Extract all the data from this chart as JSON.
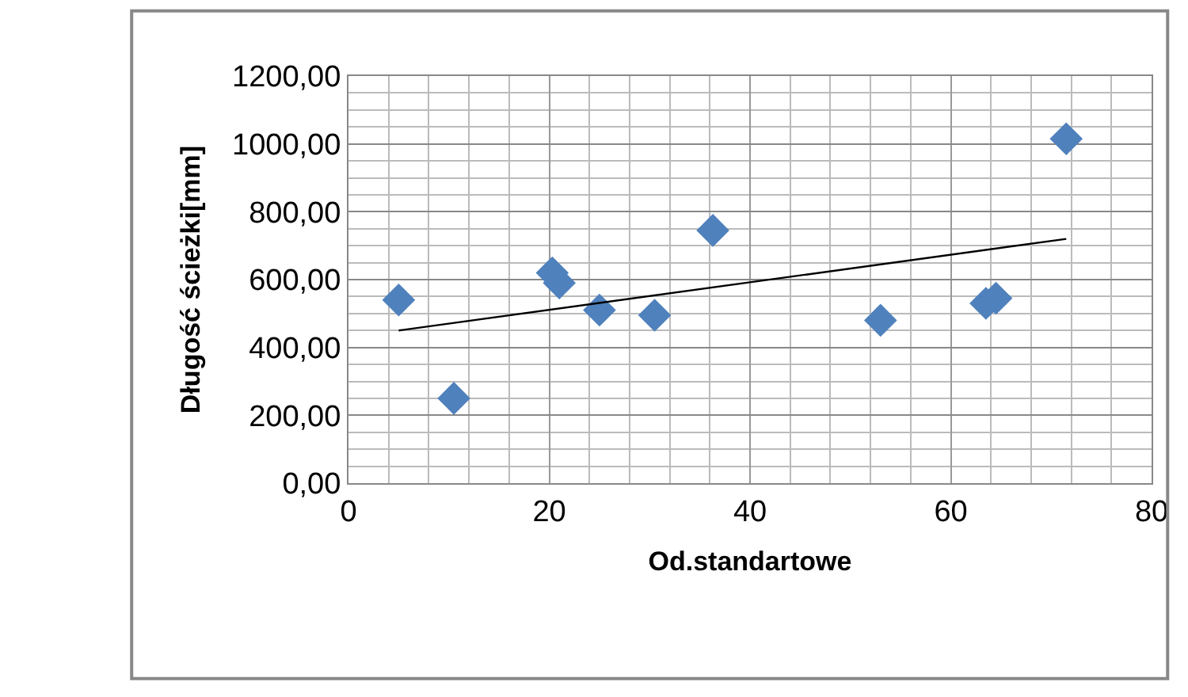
{
  "chart_data": {
    "type": "scatter",
    "xlabel": "Od.standartowe",
    "ylabel": "Długość ścieżki[mm]",
    "xlim": [
      0,
      80
    ],
    "xticks": [
      0,
      20,
      40,
      60,
      80
    ],
    "ylim": [
      0,
      1200
    ],
    "yticks": [
      {
        "value": 0,
        "label": "0,00"
      },
      {
        "value": 200,
        "label": "200,00"
      },
      {
        "value": 400,
        "label": "400,00"
      },
      {
        "value": 600,
        "label": "600,00"
      },
      {
        "value": 800,
        "label": "800,00"
      },
      {
        "value": 1000,
        "label": "1000,00"
      },
      {
        "value": 1200,
        "label": "1200,00"
      }
    ],
    "grid": true,
    "marker": "diamond",
    "series": [
      {
        "color": "#4f81bd",
        "x": [
          5,
          10.5,
          20.3,
          21,
          25,
          30.5,
          36.3,
          53,
          63.5,
          64.5,
          71.5
        ],
        "values": [
          540,
          250,
          620,
          590,
          510,
          495,
          745,
          480,
          530,
          545,
          1015
        ]
      },
      {
        "type": "line",
        "marker": "none",
        "color": "#000000",
        "x": [
          5,
          71.5
        ],
        "values": [
          450,
          720
        ]
      }
    ]
  }
}
